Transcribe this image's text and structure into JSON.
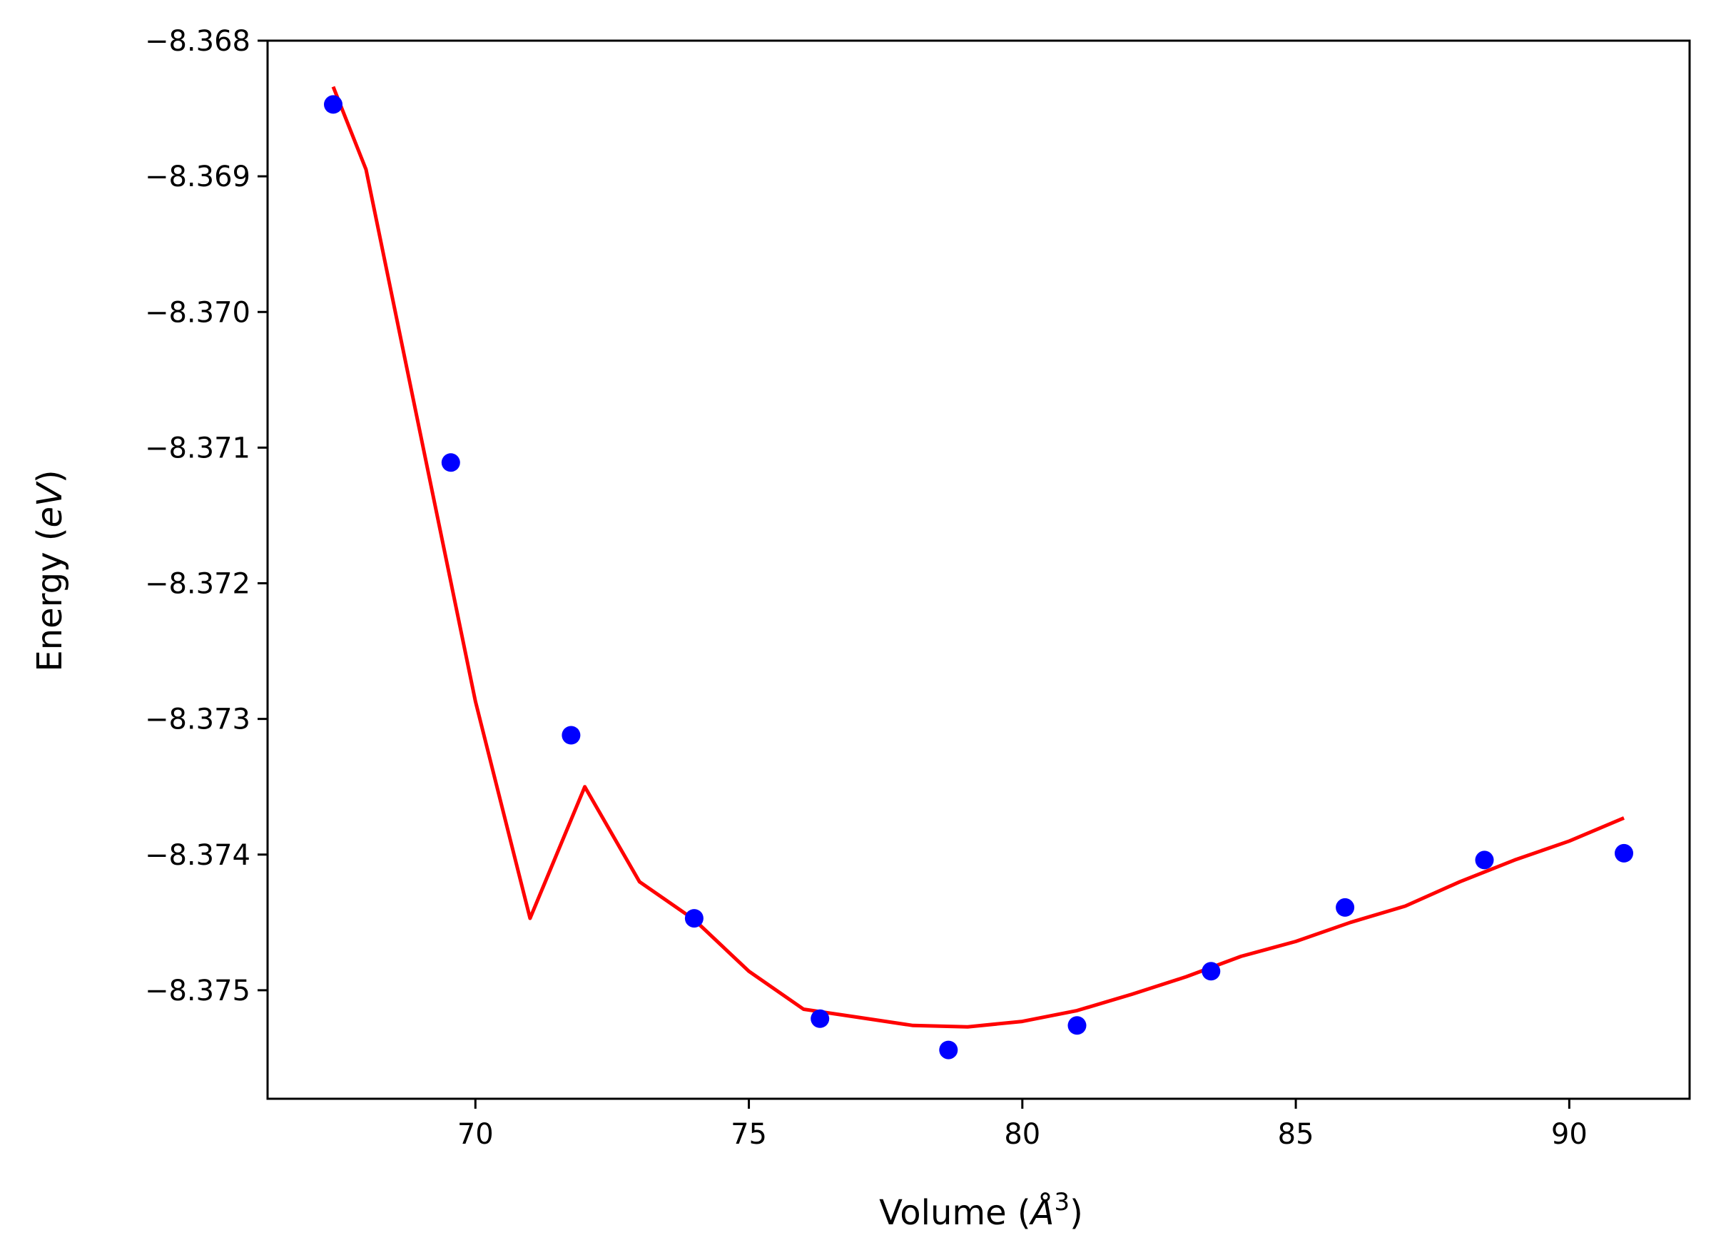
{
  "chart_data": {
    "type": "scatter",
    "title": "",
    "xlabel_prefix": "Volume (",
    "xlabel_unit": "Å",
    "xlabel_exp": "3",
    "xlabel_suffix": ")",
    "ylabel_prefix": "Energy (",
    "ylabel_unit": "eV",
    "ylabel_suffix": ")",
    "xlim": [
      66.2,
      92.2
    ],
    "ylim": [
      -8.3758,
      -8.368
    ],
    "xticks": [
      70,
      75,
      80,
      85,
      90
    ],
    "yticks": [
      -8.368,
      -8.369,
      -8.37,
      -8.371,
      -8.372,
      -8.373,
      -8.374,
      -8.375
    ],
    "ytick_labels": [
      "−8.368",
      "−8.369",
      "−8.370",
      "−8.371",
      "−8.372",
      "−8.373",
      "−8.374",
      "−8.375"
    ],
    "grid": false,
    "series": [
      {
        "kind": "points",
        "color": "#0000ff",
        "x": [
          67.4,
          69.55,
          71.75,
          74.0,
          76.3,
          78.65,
          81.0,
          83.45,
          85.9,
          88.45,
          91.0
        ],
        "y": [
          -8.36847,
          -8.37111,
          -8.37312,
          -8.37447,
          -8.37521,
          -8.37544,
          -8.37526,
          -8.37486,
          -8.37439,
          -8.37404,
          -8.37399
        ]
      },
      {
        "kind": "fit-line",
        "color": "#ff0000",
        "x": [
          67.4,
          68.0,
          69.0,
          70.0,
          71.0,
          72.0,
          73.0,
          74.0,
          75.0,
          76.0,
          77.0,
          78.0,
          79.0,
          80.0,
          81.0,
          82.0,
          83.0,
          84.0,
          85.0,
          86.0,
          87.0,
          88.0,
          89.0,
          90.0,
          91.0
        ],
        "y": [
          -8.36834,
          -8.36895,
          -8.37091,
          -8.37287,
          -8.37447,
          -8.3735,
          -8.3742,
          -8.37448,
          -8.37486,
          -8.37514,
          -8.3752,
          -8.37526,
          -8.37527,
          -8.37523,
          -8.37515,
          -8.37503,
          -8.3749,
          -8.37475,
          -8.37464,
          -8.3745,
          -8.37438,
          -8.3742,
          -8.37404,
          -8.3739,
          -8.37373
        ]
      }
    ]
  }
}
